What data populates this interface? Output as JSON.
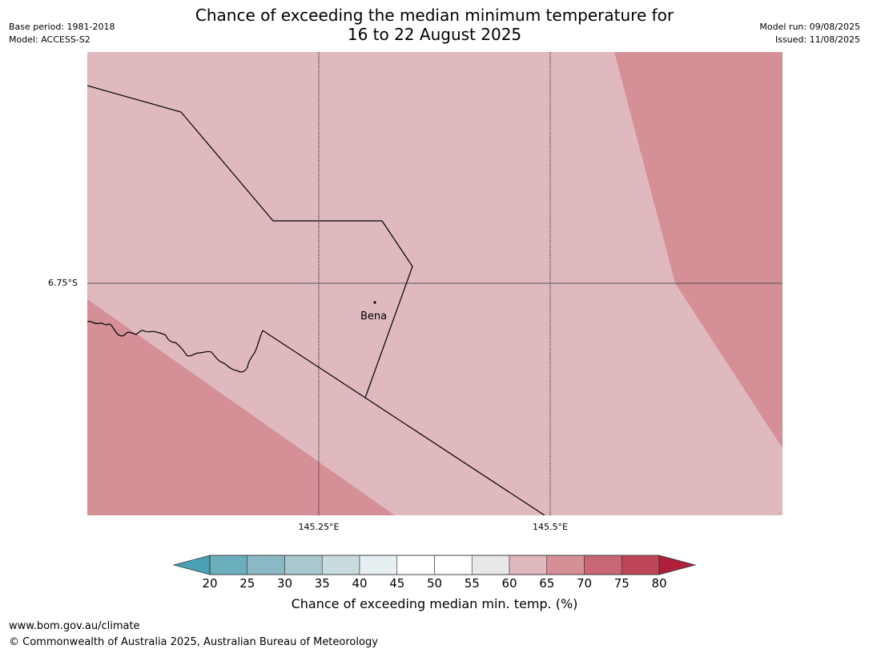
{
  "title": {
    "line1": "Chance of exceeding the median minimum temperature for",
    "line2": "16 to 22 August 2025"
  },
  "meta": {
    "base_period": "Base period: 1981-2018",
    "model": "Model: ACCESS-S2",
    "model_run": "Model run: 09/08/2025",
    "issued": "Issued: 11/08/2025"
  },
  "map": {
    "place_name": "Bena",
    "lat_label": "6.75°S",
    "lon_labels": [
      "145.25°E",
      "145.5°E"
    ],
    "colors": {
      "band_60_65": "#e0b9bf",
      "band_65_70": "#d48f97",
      "border": "#000000",
      "graticule": "#000000"
    }
  },
  "colorbar": {
    "title": "Chance of exceeding median min. temp. (%)",
    "ticks": [
      "20",
      "25",
      "30",
      "35",
      "40",
      "45",
      "50",
      "55",
      "60",
      "65",
      "70",
      "75",
      "80"
    ],
    "low_extend_color": "#4aa0b3",
    "high_extend_color": "#b01f3b",
    "segment_colors": [
      "#6baebe",
      "#8ab8c5",
      "#a8c8ce",
      "#c8dcdf",
      "#e6f0f2",
      "#ffffff",
      "#ffffff",
      "#e8e8e8",
      "#e0b9bf",
      "#d48f97",
      "#c96775",
      "#be4556"
    ]
  },
  "footer": {
    "url": "www.bom.gov.au/climate",
    "copyright": "© Commonwealth of Australia 2025, Australian Bureau of Meteorology"
  }
}
